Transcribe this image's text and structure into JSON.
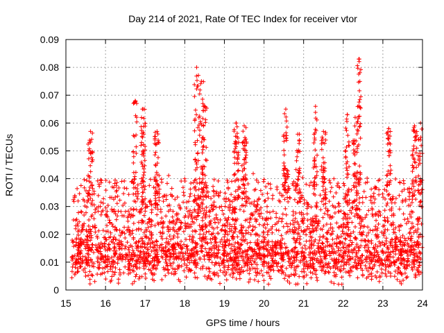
{
  "chart_data": {
    "type": "scatter",
    "title": "Day 214 of 2021, Rate Of TEC Index for receiver vtor",
    "xlabel": "GPS time / hours",
    "ylabel": "ROTI / TECUs",
    "xlim": [
      15,
      24
    ],
    "ylim": [
      0,
      0.09
    ],
    "x_ticks": [
      15,
      16,
      17,
      18,
      19,
      20,
      21,
      22,
      23,
      24
    ],
    "y_ticks": [
      0,
      0.01,
      0.02,
      0.03,
      0.04,
      0.05,
      0.06,
      0.07,
      0.08,
      0.09
    ],
    "x_tick_labels": [
      "15",
      "16",
      "17",
      "18",
      "19",
      "20",
      "21",
      "22",
      "23",
      "24"
    ],
    "y_tick_labels": [
      "0",
      "0.01",
      "0.02",
      "0.03",
      "0.04",
      "0.05",
      "0.06",
      "0.07",
      "0.08",
      "0.09"
    ],
    "grid": true,
    "marker": "+",
    "color": "#ff0000",
    "x_start": 15.15,
    "x_end": 24.0,
    "typical_range": [
      0.005,
      0.02
    ],
    "peaks": [
      {
        "x": 15.62,
        "y": 0.057
      },
      {
        "x": 16.75,
        "y": 0.068
      },
      {
        "x": 16.95,
        "y": 0.065
      },
      {
        "x": 17.3,
        "y": 0.057
      },
      {
        "x": 18.3,
        "y": 0.08
      },
      {
        "x": 18.42,
        "y": 0.075
      },
      {
        "x": 18.5,
        "y": 0.066
      },
      {
        "x": 19.3,
        "y": 0.06
      },
      {
        "x": 19.5,
        "y": 0.059
      },
      {
        "x": 20.55,
        "y": 0.065
      },
      {
        "x": 20.85,
        "y": 0.056
      },
      {
        "x": 21.3,
        "y": 0.066
      },
      {
        "x": 21.5,
        "y": 0.057
      },
      {
        "x": 22.1,
        "y": 0.063
      },
      {
        "x": 22.3,
        "y": 0.062
      },
      {
        "x": 22.4,
        "y": 0.083
      },
      {
        "x": 23.15,
        "y": 0.058
      },
      {
        "x": 23.8,
        "y": 0.059
      },
      {
        "x": 23.95,
        "y": 0.06
      }
    ]
  }
}
